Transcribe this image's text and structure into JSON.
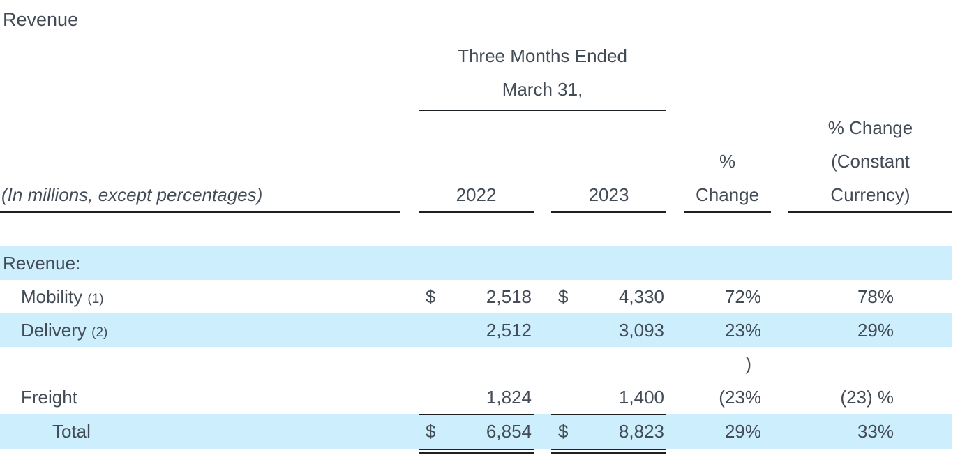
{
  "page": {
    "title": "Revenue",
    "colors": {
      "text": "#434c56",
      "rule": "#1c2126",
      "row_highlight": "#cdeefd",
      "background": "#ffffff"
    }
  },
  "table": {
    "caption": "(In millions, except percentages)",
    "period_header": {
      "line1": "Three Months Ended",
      "line2": "March 31,"
    },
    "columns": {
      "year1": "2022",
      "year2": "2023",
      "pct_change": [
        "%",
        "Change"
      ],
      "pct_change_cc": [
        "% Change",
        "(Constant",
        "Currency)"
      ]
    },
    "rows": [
      {
        "type": "section",
        "label": "Revenue:"
      },
      {
        "type": "item",
        "label": "Mobility",
        "footnote": "(1)",
        "currency_2022": "$",
        "amount_2022": "2,518",
        "currency_2023": "$",
        "amount_2023": "4,330",
        "pct_change": "72%",
        "pct_change_cc": "78%"
      },
      {
        "type": "item",
        "label": "Delivery",
        "footnote": "(2)",
        "amount_2022": "2,512",
        "amount_2023": "3,093",
        "pct_change": "23%",
        "pct_change_cc": "29%"
      },
      {
        "type": "spacer",
        "pct_change": ")"
      },
      {
        "type": "item",
        "label": "Freight",
        "amount_2022": "1,824",
        "amount_2023": "1,400",
        "pct_change": "(23%",
        "pct_change_cc": "(23) %"
      },
      {
        "type": "total",
        "label": "Total",
        "currency_2022": "$",
        "amount_2022": "6,854",
        "currency_2023": "$",
        "amount_2023": "8,823",
        "pct_change": "29%",
        "pct_change_cc": "33%"
      }
    ]
  }
}
